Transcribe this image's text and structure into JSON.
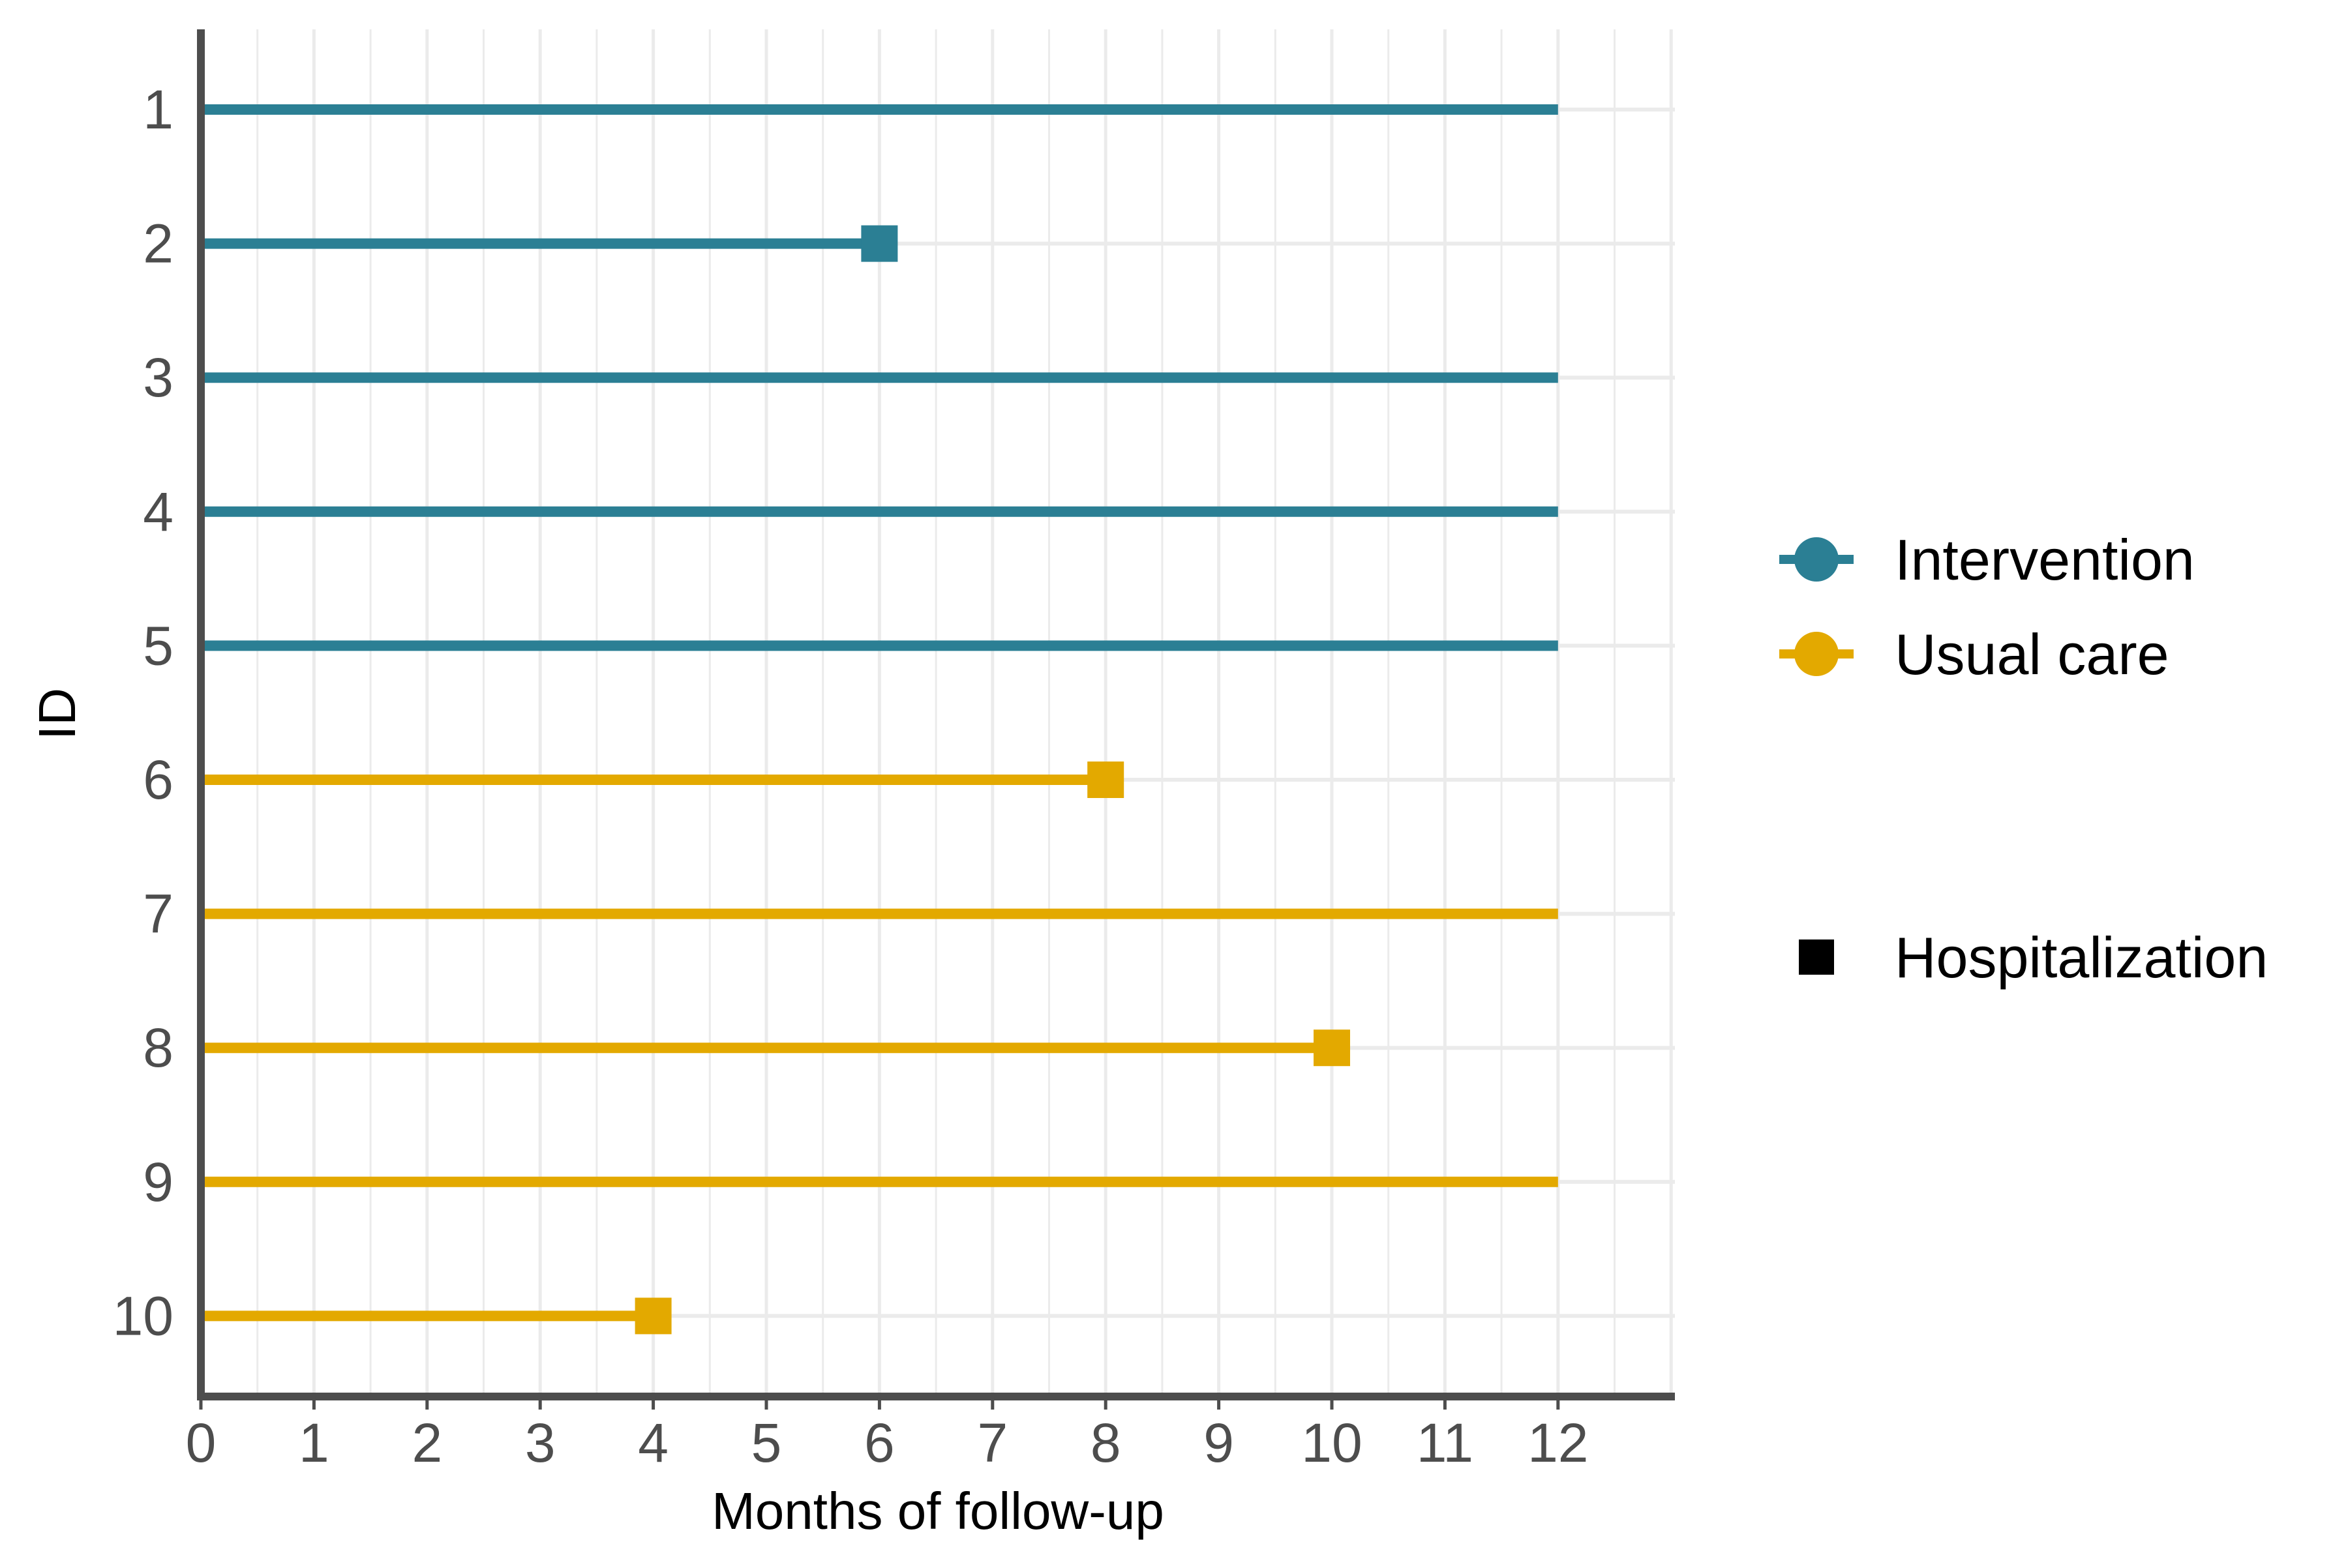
{
  "chart_data": {
    "type": "swimmer",
    "title": "",
    "xlabel": "Months of follow-up",
    "ylabel": "ID",
    "xlim": [
      0,
      13
    ],
    "x_ticks": [
      "0",
      "1",
      "2",
      "3",
      "4",
      "5",
      "6",
      "7",
      "8",
      "9",
      "10",
      "11",
      "12"
    ],
    "y_categories": [
      "1",
      "2",
      "3",
      "4",
      "5",
      "6",
      "7",
      "8",
      "9",
      "10"
    ],
    "grid": true,
    "legend_position": "right",
    "series": [
      {
        "name": "Intervention",
        "color": "#2b7f94"
      },
      {
        "name": "Usual care",
        "color": "#e3a900"
      }
    ],
    "marker_legend": {
      "name": "Hospitalization",
      "shape": "square",
      "color": "#000000"
    },
    "subjects": [
      {
        "id": "1",
        "group": "Intervention",
        "end": 12,
        "hospitalization": null
      },
      {
        "id": "2",
        "group": "Intervention",
        "end": 6,
        "hospitalization": 6
      },
      {
        "id": "3",
        "group": "Intervention",
        "end": 12,
        "hospitalization": null
      },
      {
        "id": "4",
        "group": "Intervention",
        "end": 12,
        "hospitalization": null
      },
      {
        "id": "5",
        "group": "Intervention",
        "end": 12,
        "hospitalization": null
      },
      {
        "id": "6",
        "group": "Usual care",
        "end": 8,
        "hospitalization": 8
      },
      {
        "id": "7",
        "group": "Usual care",
        "end": 12,
        "hospitalization": null
      },
      {
        "id": "8",
        "group": "Usual care",
        "end": 10,
        "hospitalization": 10
      },
      {
        "id": "9",
        "group": "Usual care",
        "end": 12,
        "hospitalization": null
      },
      {
        "id": "10",
        "group": "Usual care",
        "end": 4,
        "hospitalization": 4
      }
    ]
  }
}
